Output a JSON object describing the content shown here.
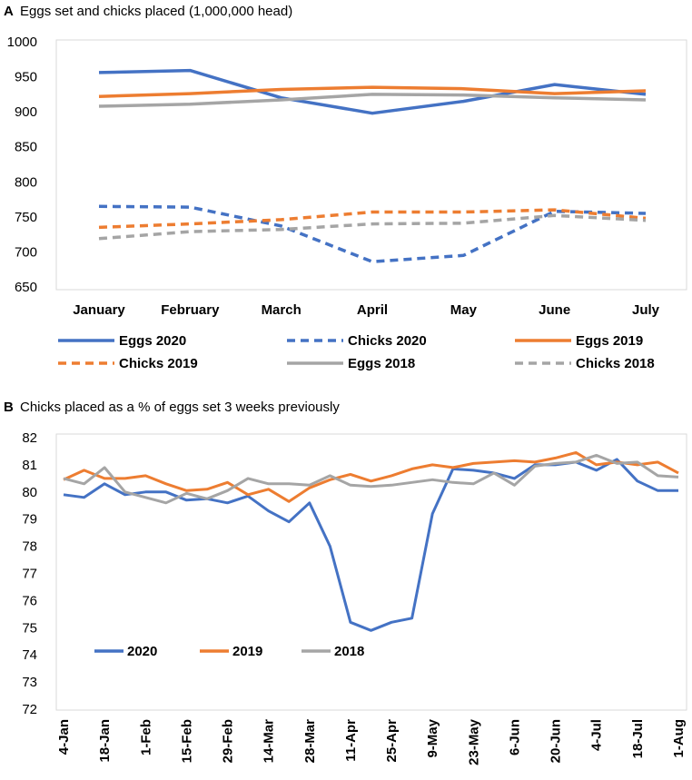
{
  "chart_data": [
    {
      "type": "line",
      "panel_letter": "A",
      "title": "Eggs set and chicks placed (1,000,000 head)",
      "categories": [
        "January",
        "February",
        "March",
        "April",
        "May",
        "June",
        "July"
      ],
      "ylim": [
        650,
        1000
      ],
      "yticks": [
        650,
        700,
        750,
        800,
        850,
        900,
        950,
        1000
      ],
      "grid": false,
      "series": [
        {
          "name": "Eggs 2020",
          "color": "#4472C4",
          "dashed": false,
          "values": [
            956,
            959,
            920,
            898,
            915,
            939,
            925
          ]
        },
        {
          "name": "Chicks 2020",
          "color": "#4472C4",
          "dashed": true,
          "values": [
            765,
            764,
            737,
            686,
            695,
            758,
            755
          ]
        },
        {
          "name": "Eggs 2019",
          "color": "#ED7D31",
          "dashed": false,
          "values": [
            922,
            926,
            932,
            935,
            933,
            926,
            930
          ]
        },
        {
          "name": "Chicks 2019",
          "color": "#ED7D31",
          "dashed": true,
          "values": [
            735,
            740,
            746,
            757,
            757,
            760,
            748
          ]
        },
        {
          "name": "Eggs 2018",
          "color": "#A5A5A5",
          "dashed": false,
          "values": [
            908,
            911,
            917,
            925,
            924,
            920,
            917
          ]
        },
        {
          "name": "Chicks 2018",
          "color": "#A5A5A5",
          "dashed": true,
          "values": [
            719,
            729,
            732,
            740,
            741,
            752,
            745
          ]
        }
      ]
    },
    {
      "type": "line",
      "panel_letter": "B",
      "title": "Chicks placed as a % of eggs set 3 weeks previously",
      "x": [
        "4-Jan",
        "11-Jan",
        "18-Jan",
        "25-Jan",
        "1-Feb",
        "8-Feb",
        "15-Feb",
        "22-Feb",
        "29-Feb",
        "7-Mar",
        "14-Mar",
        "21-Mar",
        "28-Mar",
        "4-Apr",
        "11-Apr",
        "18-Apr",
        "25-Apr",
        "2-May",
        "9-May",
        "16-May",
        "23-May",
        "30-May",
        "6-Jun",
        "13-Jun",
        "20-Jun",
        "27-Jun",
        "4-Jul",
        "11-Jul",
        "18-Jul",
        "25-Jul",
        "1-Aug"
      ],
      "tick_labels": [
        "4-Jan",
        "18-Jan",
        "1-Feb",
        "15-Feb",
        "29-Feb",
        "14-Mar",
        "28-Mar",
        "11-Apr",
        "25-Apr",
        "9-May",
        "23-May",
        "6-Jun",
        "20-Jun",
        "4-Jul",
        "18-Jul",
        "1-Aug"
      ],
      "ylim": [
        72,
        82
      ],
      "yticks": [
        72,
        73,
        74,
        75,
        76,
        77,
        78,
        79,
        80,
        81,
        82
      ],
      "grid": false,
      "legend_position": "lower-left",
      "series": [
        {
          "name": "2020",
          "color": "#4472C4",
          "values": [
            79.9,
            79.8,
            80.3,
            79.9,
            80.0,
            80.0,
            79.7,
            79.75,
            79.6,
            79.85,
            79.3,
            78.9,
            79.6,
            78.0,
            75.2,
            74.9,
            75.2,
            75.35,
            79.2,
            80.85,
            80.8,
            80.7,
            80.5,
            81.0,
            81.0,
            81.1,
            80.8,
            81.2,
            80.4,
            80.05,
            80.05
          ]
        },
        {
          "name": "2019",
          "color": "#ED7D31",
          "values": [
            80.45,
            80.8,
            80.5,
            80.5,
            80.6,
            80.3,
            80.05,
            80.1,
            80.35,
            79.9,
            80.1,
            79.65,
            80.15,
            80.45,
            80.65,
            80.4,
            80.6,
            80.85,
            81.0,
            80.9,
            81.05,
            81.1,
            81.15,
            81.1,
            81.25,
            81.45,
            81.0,
            81.1,
            81.0,
            81.1,
            80.7
          ]
        },
        {
          "name": "2018",
          "color": "#A5A5A5",
          "values": [
            80.5,
            80.3,
            80.9,
            80.0,
            79.8,
            79.6,
            79.95,
            79.75,
            80.05,
            80.5,
            80.3,
            80.3,
            80.25,
            80.6,
            80.25,
            80.2,
            80.25,
            80.35,
            80.45,
            80.35,
            80.3,
            80.7,
            80.25,
            80.95,
            81.05,
            81.1,
            81.35,
            81.05,
            81.1,
            80.6,
            80.55
          ]
        }
      ]
    }
  ]
}
